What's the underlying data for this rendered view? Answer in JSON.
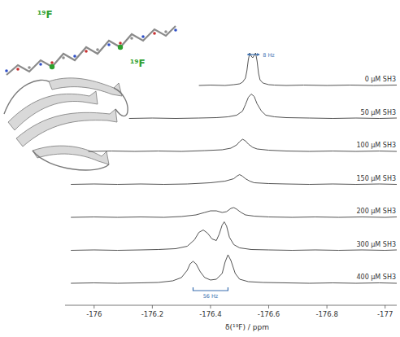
{
  "chart_data": {
    "type": "line",
    "x_label": "δ(¹⁹F) / ppm",
    "xlim": [
      -175.9,
      -177.04
    ],
    "xticks": [
      -176,
      -176.2,
      -176.4,
      -176.6,
      -176.8,
      -177
    ],
    "ylim": [
      0,
      50
    ],
    "tick_labels": "x",
    "color": "#404040",
    "series": [
      {
        "name": "0 µM SH3",
        "x": [
          -176.36,
          -176.4,
          -176.45,
          -176.48,
          -176.5,
          -176.51,
          -176.52,
          -176.525,
          -176.53,
          -176.535,
          -176.54,
          -176.545,
          -176.55,
          -176.555,
          -176.56,
          -176.565,
          -176.57,
          -176.58,
          -176.6,
          -176.62,
          -176.66,
          -176.72,
          -176.8,
          -176.88,
          -176.96,
          -177.04
        ],
        "values": [
          0,
          0.5,
          0,
          1,
          2,
          4,
          9,
          18,
          32,
          40,
          36,
          34,
          37,
          40,
          30,
          15,
          7,
          3,
          1,
          0.5,
          0,
          0.5,
          0,
          0.5,
          0,
          0.5
        ]
      },
      {
        "name": "50 µM SH3",
        "x": [
          -176.12,
          -176.2,
          -176.28,
          -176.36,
          -176.42,
          -176.46,
          -176.49,
          -176.51,
          -176.52,
          -176.53,
          -176.54,
          -176.55,
          -176.56,
          -176.575,
          -176.59,
          -176.62,
          -176.66,
          -176.74,
          -176.82,
          -176.9,
          -176.98,
          -177.04
        ],
        "values": [
          0,
          0.5,
          0,
          0.5,
          1,
          2,
          4,
          9,
          17,
          26,
          30,
          27,
          18,
          9,
          4,
          2,
          1,
          0.5,
          0,
          0.5,
          0,
          0.5
        ]
      },
      {
        "name": "100 µM SH3",
        "x": [
          -175.98,
          -176.06,
          -176.14,
          -176.22,
          -176.3,
          -176.38,
          -176.44,
          -176.47,
          -176.49,
          -176.5,
          -176.51,
          -176.52,
          -176.53,
          -176.545,
          -176.56,
          -176.6,
          -176.66,
          -176.74,
          -176.82,
          -176.9,
          -176.98,
          -177.04
        ],
        "values": [
          0,
          0.5,
          0,
          0.5,
          0,
          1,
          2,
          4,
          8,
          12,
          15,
          13,
          9,
          5,
          3,
          1.5,
          0.5,
          0,
          0.5,
          0,
          0.5,
          0
        ]
      },
      {
        "name": "150 µM SH3",
        "x": [
          -175.92,
          -176.0,
          -176.08,
          -176.16,
          -176.24,
          -176.32,
          -176.4,
          -176.45,
          -176.48,
          -176.49,
          -176.5,
          -176.51,
          -176.52,
          -176.535,
          -176.55,
          -176.6,
          -176.66,
          -176.74,
          -176.82,
          -176.9,
          -176.98,
          -177.04
        ],
        "values": [
          0,
          0.5,
          0,
          0.5,
          0,
          0.5,
          2,
          4,
          7,
          10,
          12,
          10,
          7,
          4,
          2,
          1,
          0.5,
          0,
          0.5,
          0,
          0.5,
          0
        ]
      },
      {
        "name": "200 µM SH3",
        "x": [
          -175.92,
          -176.0,
          -176.08,
          -176.16,
          -176.24,
          -176.3,
          -176.35,
          -176.38,
          -176.4,
          -176.42,
          -176.44,
          -176.455,
          -176.47,
          -176.48,
          -176.49,
          -176.505,
          -176.52,
          -176.55,
          -176.6,
          -176.68,
          -176.76,
          -176.84,
          -176.92,
          -177.0,
          -177.04
        ],
        "values": [
          0,
          0.5,
          0,
          0.5,
          0,
          1,
          3,
          6,
          8,
          8,
          6,
          7,
          11,
          12,
          10,
          6,
          3,
          1.5,
          0.5,
          0,
          0.5,
          0,
          0.5,
          0,
          0.5
        ]
      },
      {
        "name": "300 µM SH3",
        "x": [
          -175.92,
          -176.0,
          -176.08,
          -176.16,
          -176.22,
          -176.28,
          -176.32,
          -176.345,
          -176.36,
          -176.375,
          -176.39,
          -176.405,
          -176.42,
          -176.43,
          -176.44,
          -176.447,
          -176.455,
          -176.465,
          -176.48,
          -176.5,
          -176.54,
          -176.6,
          -176.68,
          -176.76,
          -176.84,
          -176.92,
          -177.0,
          -177.04
        ],
        "values": [
          0,
          0.5,
          0,
          0.5,
          1,
          2,
          5,
          13,
          22,
          25,
          21,
          14,
          12,
          20,
          31,
          35,
          30,
          16,
          7,
          3,
          1,
          0.5,
          0,
          0.5,
          0,
          0.5,
          0,
          0.5
        ]
      },
      {
        "name": "400 µM SH3",
        "x": [
          -175.92,
          -176.0,
          -176.08,
          -176.16,
          -176.22,
          -176.27,
          -176.3,
          -176.32,
          -176.33,
          -176.34,
          -176.35,
          -176.365,
          -176.38,
          -176.4,
          -176.42,
          -176.44,
          -176.45,
          -176.46,
          -176.47,
          -176.485,
          -176.5,
          -176.53,
          -176.58,
          -176.66,
          -176.74,
          -176.82,
          -176.9,
          -176.98,
          -177.04
        ],
        "values": [
          0,
          0.5,
          0,
          0.5,
          1,
          3,
          7,
          16,
          24,
          27,
          24,
          14,
          7,
          4,
          5,
          12,
          26,
          35,
          28,
          12,
          5,
          2,
          1,
          0.5,
          0,
          0.5,
          0,
          0.5,
          0
        ]
      }
    ],
    "annotations": [
      {
        "text": "8 Hz",
        "series": 0,
        "x": [
          -176.535,
          -176.56
        ],
        "y": 38
      },
      {
        "text": "56 Hz",
        "series": 6,
        "x": [
          -176.34,
          -176.46
        ],
        "y": -9
      },
      {
        "text": "¹⁹F"
      },
      {
        "text": "¹⁹F"
      }
    ]
  }
}
